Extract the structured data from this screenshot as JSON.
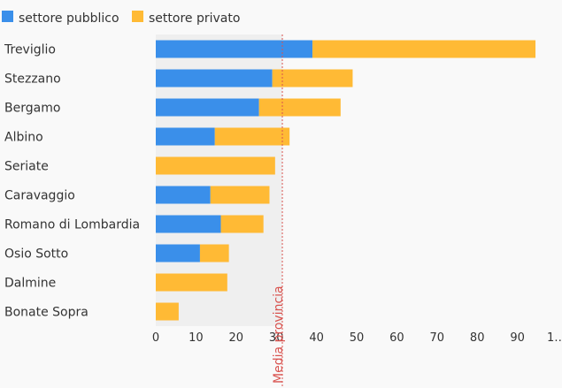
{
  "colors": {
    "public": "#3a8fea",
    "private": "#ffba35",
    "reference": "#d9534f",
    "shade": "#efefef",
    "background": "#f9f9f9"
  },
  "legend": {
    "public_label": "settore pubblico",
    "private_label": "settore privato",
    "placement": "top-left"
  },
  "reference_line": {
    "label": "Media provincia",
    "value": 31.5
  },
  "chart_data": {
    "type": "bar",
    "orientation": "horizontal",
    "stacked": true,
    "categories": [
      "Treviglio",
      "Stezzano",
      "Bergamo",
      "Albino",
      "Seriate",
      "Caravaggio",
      "Romano di Lombardia",
      "Osio Sotto",
      "Dalmine",
      "Bonate Sopra"
    ],
    "series": [
      {
        "name": "settore pubblico",
        "values": [
          39,
          29,
          25.7,
          14.7,
          0,
          13.6,
          16.2,
          11,
          0,
          0
        ]
      },
      {
        "name": "settore privato",
        "values": [
          55.5,
          20,
          20.3,
          18.6,
          29.7,
          14.7,
          10.6,
          7.2,
          17.8,
          5.7
        ]
      }
    ],
    "xlim": [
      0,
      100
    ],
    "x_ticks": [
      "0",
      "10",
      "20",
      "30",
      "40",
      "50",
      "60",
      "70",
      "80",
      "90",
      "1…"
    ],
    "xlabel": "",
    "ylabel": "",
    "grid": false
  }
}
